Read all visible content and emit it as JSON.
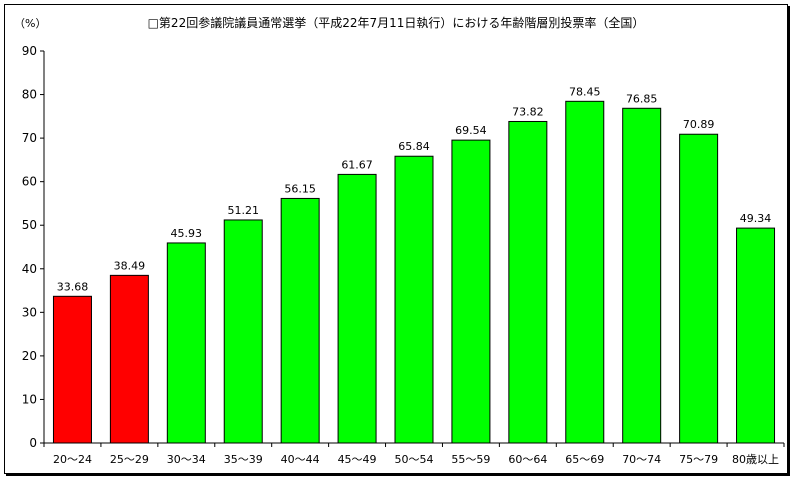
{
  "chart_data": {
    "type": "bar",
    "title": "□第22回参議院議員通常選挙（平成22年7月11日執行）における年齢階層別投票率（全国）",
    "unit_label": "（%）",
    "ylim": [
      0,
      90
    ],
    "yticks": [
      0,
      10,
      20,
      30,
      40,
      50,
      60,
      70,
      80,
      90
    ],
    "grid": false,
    "categories": [
      "20～24",
      "25～29",
      "30～34",
      "35～39",
      "40～44",
      "45～49",
      "50～54",
      "55～59",
      "60～64",
      "65～69",
      "70～74",
      "75～79",
      "80歳以上"
    ],
    "values": [
      33.68,
      38.49,
      45.93,
      51.21,
      56.15,
      61.67,
      65.84,
      69.54,
      73.82,
      78.45,
      76.85,
      70.89,
      49.34
    ],
    "value_labels": [
      "33.68",
      "38.49",
      "45.93",
      "51.21",
      "56.15",
      "61.67",
      "65.84",
      "69.54",
      "73.82",
      "78.45",
      "76.85",
      "70.89",
      "49.34"
    ],
    "colors": [
      "#ff0000",
      "#ff0000",
      "#00ff00",
      "#00ff00",
      "#00ff00",
      "#00ff00",
      "#00ff00",
      "#00ff00",
      "#00ff00",
      "#00ff00",
      "#00ff00",
      "#00ff00",
      "#00ff00"
    ]
  }
}
